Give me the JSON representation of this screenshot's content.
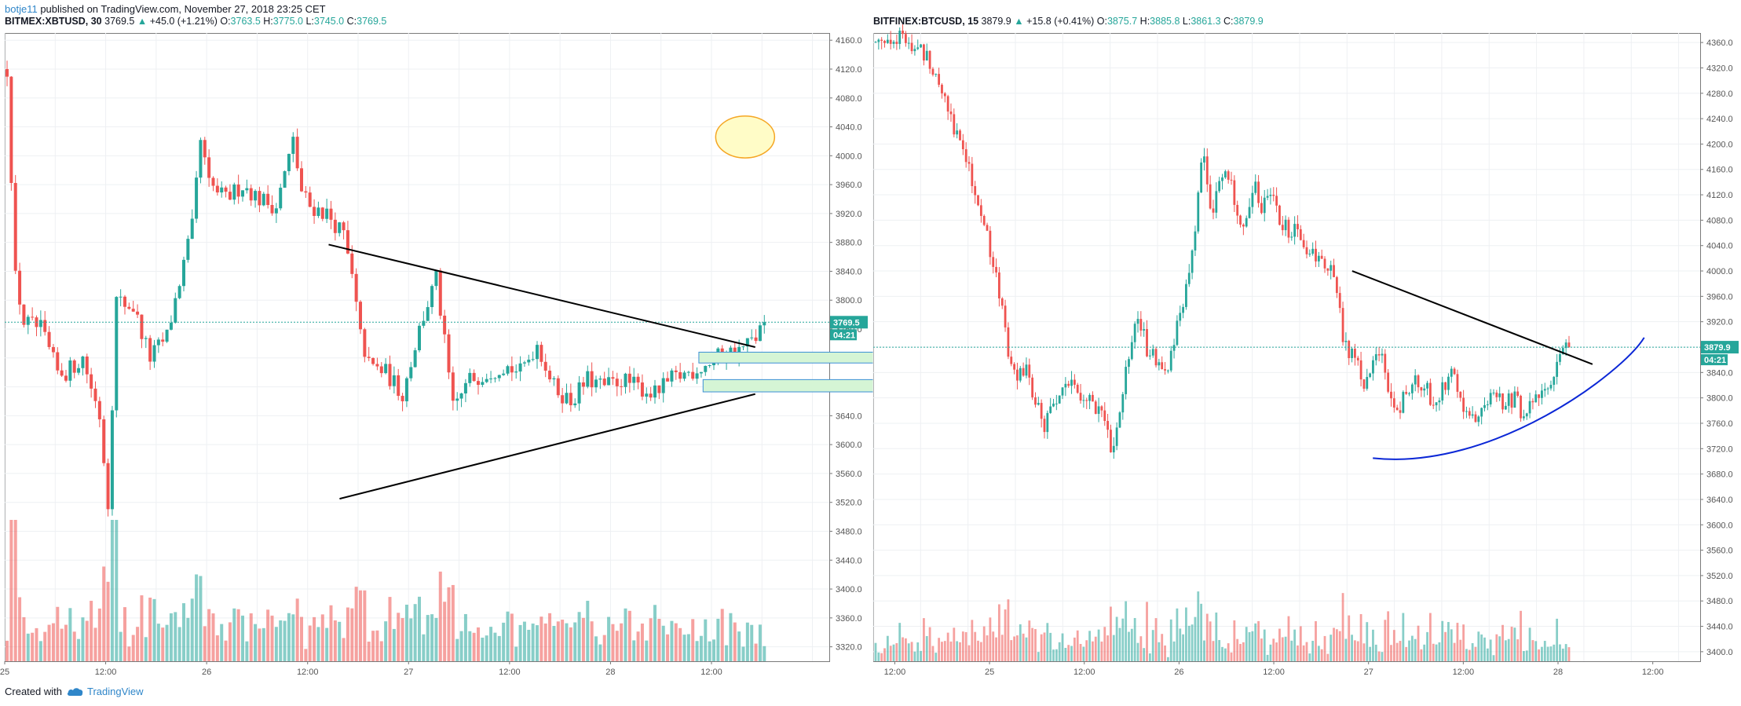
{
  "publication": {
    "author": "botje11",
    "text": "published on TradingView.com, November 27, 2018 23:25 CET"
  },
  "footer": {
    "created_with": "Created with",
    "brand": "TradingView",
    "logo_icon": "tradingview-cloud-icon"
  },
  "colors": {
    "up": "#26a69a",
    "down": "#ef5350",
    "grid": "#eef0f3",
    "axis": "#555555",
    "curve": "#0b27d6",
    "trendline": "#000000",
    "zone_fill": "#d5f5d5",
    "zone_border": "#3b8fd6",
    "circle_fill": "#fffcc7",
    "circle_border": "#f5a623"
  },
  "left": {
    "header": {
      "symbol": "BITMEX:XBTUSD, 30",
      "last": "3769.5",
      "change": "+45.0 (+1.21%)",
      "o": "3763.5",
      "h": "3775.0",
      "l": "3745.0",
      "c": "3769.5"
    },
    "price_label": "3769.5",
    "countdown": "04:21",
    "y_ticks": [
      "4160.0",
      "4120.0",
      "4080.0",
      "4040.0",
      "4000.0",
      "3960.0",
      "3920.0",
      "3880.0",
      "3840.0",
      "3800.0",
      "3760.0",
      "3720.0",
      "3680.0",
      "3640.0",
      "3600.0",
      "3560.0",
      "3520.0",
      "3480.0",
      "3440.0",
      "3400.0",
      "3360.0",
      "3320.0"
    ],
    "x_ticks": [
      "25",
      "12:00",
      "26",
      "12:00",
      "27",
      "12:00",
      "28",
      "12:00"
    ]
  },
  "right": {
    "header": {
      "symbol": "BITFINEX:BTCUSD, 15",
      "last": "3879.9",
      "change": "+15.8 (+0.41%)",
      "o": "3875.7",
      "h": "3885.8",
      "l": "3861.3",
      "c": "3879.9"
    },
    "price_label": "3879.9",
    "countdown": "04:21",
    "y_ticks": [
      "4360.0",
      "4320.0",
      "4280.0",
      "4240.0",
      "4200.0",
      "4160.0",
      "4120.0",
      "4080.0",
      "4040.0",
      "4000.0",
      "3960.0",
      "3920.0",
      "3880.0",
      "3840.0",
      "3800.0",
      "3760.0",
      "3720.0",
      "3680.0",
      "3640.0",
      "3600.0",
      "3560.0",
      "3520.0",
      "3480.0",
      "3440.0",
      "3400.0"
    ],
    "x_ticks": [
      "12:00",
      "25",
      "12:00",
      "26",
      "12:00",
      "27",
      "12:00",
      "28",
      "12:00"
    ]
  },
  "chart_data": [
    {
      "type": "candlestick",
      "title": "BITMEX:XBTUSD, 30",
      "ylim": [
        3300,
        4170
      ],
      "x_range_hours": [
        0,
        98
      ],
      "x_ticks_hours": [
        0,
        12,
        24,
        36,
        48,
        60,
        72,
        84
      ],
      "last_price": 3769.5,
      "path": [
        [
          0,
          4120
        ],
        [
          1,
          3830
        ],
        [
          2,
          3770
        ],
        [
          4,
          3760
        ],
        [
          6,
          3700
        ],
        [
          7,
          3700
        ],
        [
          9,
          3720
        ],
        [
          11,
          3640
        ],
        [
          12,
          3520
        ],
        [
          13,
          3800
        ],
        [
          15,
          3790
        ],
        [
          17,
          3720
        ],
        [
          19,
          3750
        ],
        [
          20,
          3800
        ],
        [
          22,
          3900
        ],
        [
          23,
          4020
        ],
        [
          24,
          3960
        ],
        [
          26,
          3940
        ],
        [
          28,
          3960
        ],
        [
          30,
          3940
        ],
        [
          32,
          3930
        ],
        [
          34,
          4020
        ],
        [
          35,
          3950
        ],
        [
          36,
          3930
        ],
        [
          38,
          3920
        ],
        [
          40,
          3890
        ],
        [
          41,
          3830
        ],
        [
          42,
          3750
        ],
        [
          43,
          3710
        ],
        [
          45,
          3700
        ],
        [
          47,
          3670
        ],
        [
          49,
          3760
        ],
        [
          51,
          3830
        ],
        [
          53,
          3650
        ],
        [
          55,
          3690
        ],
        [
          57,
          3700
        ],
        [
          59,
          3710
        ],
        [
          61,
          3700
        ],
        [
          63,
          3740
        ],
        [
          65,
          3680
        ],
        [
          67,
          3660
        ],
        [
          69,
          3690
        ],
        [
          71,
          3680
        ],
        [
          73,
          3690
        ],
        [
          75,
          3680
        ],
        [
          77,
          3670
        ],
        [
          79,
          3690
        ],
        [
          81,
          3700
        ],
        [
          83,
          3710
        ],
        [
          85,
          3725
        ],
        [
          87,
          3730
        ],
        [
          89,
          3748
        ],
        [
          90,
          3769.5
        ]
      ],
      "volume": "approximate, relative",
      "drawings": {
        "trendlines": [
          {
            "from": [
              38.5,
              3877
            ],
            "to": [
              89.2,
              3735
            ]
          },
          {
            "from": [
              39.8,
              3525
            ],
            "to": [
              89.2,
              3670
            ]
          }
        ],
        "zones": [
          {
            "x": [
              82.5,
              107.5
            ],
            "y": [
              3728,
              3713
            ]
          },
          {
            "x": [
              83,
              108
            ],
            "y": [
              3690,
              3673
            ]
          }
        ],
        "circle": {
          "center": [
            88,
            4026
          ],
          "rx_hours": 3.5,
          "ry_price": 29
        }
      }
    },
    {
      "type": "candlestick",
      "title": "BITFINEX:BTCUSD, 15",
      "ylim": [
        3385,
        4375
      ],
      "x_range_hours": [
        0,
        96
      ],
      "x_ticks_hours": [
        2.5,
        13.5,
        24.5,
        35.5,
        46.5,
        57.5,
        68.5,
        79.5,
        90.5
      ],
      "last_price": 3879.9,
      "path": [
        [
          0,
          4360
        ],
        [
          1.5,
          4370
        ],
        [
          3,
          4365
        ],
        [
          4.5,
          4350
        ],
        [
          6,
          4340
        ],
        [
          7,
          4310
        ],
        [
          8,
          4280
        ],
        [
          9.5,
          4210
        ],
        [
          11,
          4160
        ],
        [
          12,
          4100
        ],
        [
          13,
          4050
        ],
        [
          14.5,
          3950
        ],
        [
          15.5,
          3870
        ],
        [
          16.5,
          3840
        ],
        [
          17.5,
          3840
        ],
        [
          18.5,
          3800
        ],
        [
          19.5,
          3750
        ],
        [
          20.5,
          3790
        ],
        [
          22,
          3810
        ],
        [
          23,
          3830
        ],
        [
          24,
          3800
        ],
        [
          25.5,
          3790
        ],
        [
          26.5,
          3760
        ],
        [
          27.5,
          3720
        ],
        [
          28.5,
          3780
        ],
        [
          29.5,
          3880
        ],
        [
          30.5,
          3920
        ],
        [
          31.5,
          3880
        ],
        [
          33,
          3860
        ],
        [
          34,
          3840
        ],
        [
          35,
          3910
        ],
        [
          36,
          3960
        ],
        [
          37,
          4060
        ],
        [
          38,
          4180
        ],
        [
          39,
          4100
        ],
        [
          40,
          4130
        ],
        [
          41,
          4160
        ],
        [
          42,
          4080
        ],
        [
          43,
          4080
        ],
        [
          44,
          4130
        ],
        [
          45,
          4100
        ],
        [
          46,
          4140
        ],
        [
          47,
          4080
        ],
        [
          48,
          4060
        ],
        [
          49,
          4060
        ],
        [
          50,
          4040
        ],
        [
          51,
          4020
        ],
        [
          52.5,
          4010
        ],
        [
          53.5,
          3970
        ],
        [
          54.5,
          3880
        ],
        [
          55.5,
          3870
        ],
        [
          56.5,
          3820
        ],
        [
          57.5,
          3840
        ],
        [
          58.5,
          3870
        ],
        [
          59.5,
          3820
        ],
        [
          60.5,
          3780
        ],
        [
          61.5,
          3800
        ],
        [
          62.5,
          3830
        ],
        [
          63.5,
          3820
        ],
        [
          64.5,
          3800
        ],
        [
          65.5,
          3810
        ],
        [
          67,
          3850
        ],
        [
          68,
          3800
        ],
        [
          69,
          3770
        ],
        [
          70,
          3760
        ],
        [
          71,
          3790
        ],
        [
          72,
          3810
        ],
        [
          73,
          3790
        ],
        [
          74,
          3800
        ],
        [
          75,
          3780
        ],
        [
          76,
          3790
        ],
        [
          77,
          3800
        ],
        [
          78,
          3820
        ],
        [
          79,
          3850
        ],
        [
          80,
          3870
        ],
        [
          80.5,
          3879.9
        ]
      ],
      "volume": "approximate, relative",
      "drawings": {
        "trendlines": [
          {
            "from": [
              55.6,
              4000
            ],
            "to": [
              83.5,
              3853
            ]
          }
        ],
        "curve": {
          "points": [
            [
              58,
              3705
            ],
            [
              72,
              3685
            ],
            [
              87,
              3840
            ],
            [
              89.5,
              3895
            ]
          ],
          "kind": "arc"
        }
      }
    }
  ]
}
